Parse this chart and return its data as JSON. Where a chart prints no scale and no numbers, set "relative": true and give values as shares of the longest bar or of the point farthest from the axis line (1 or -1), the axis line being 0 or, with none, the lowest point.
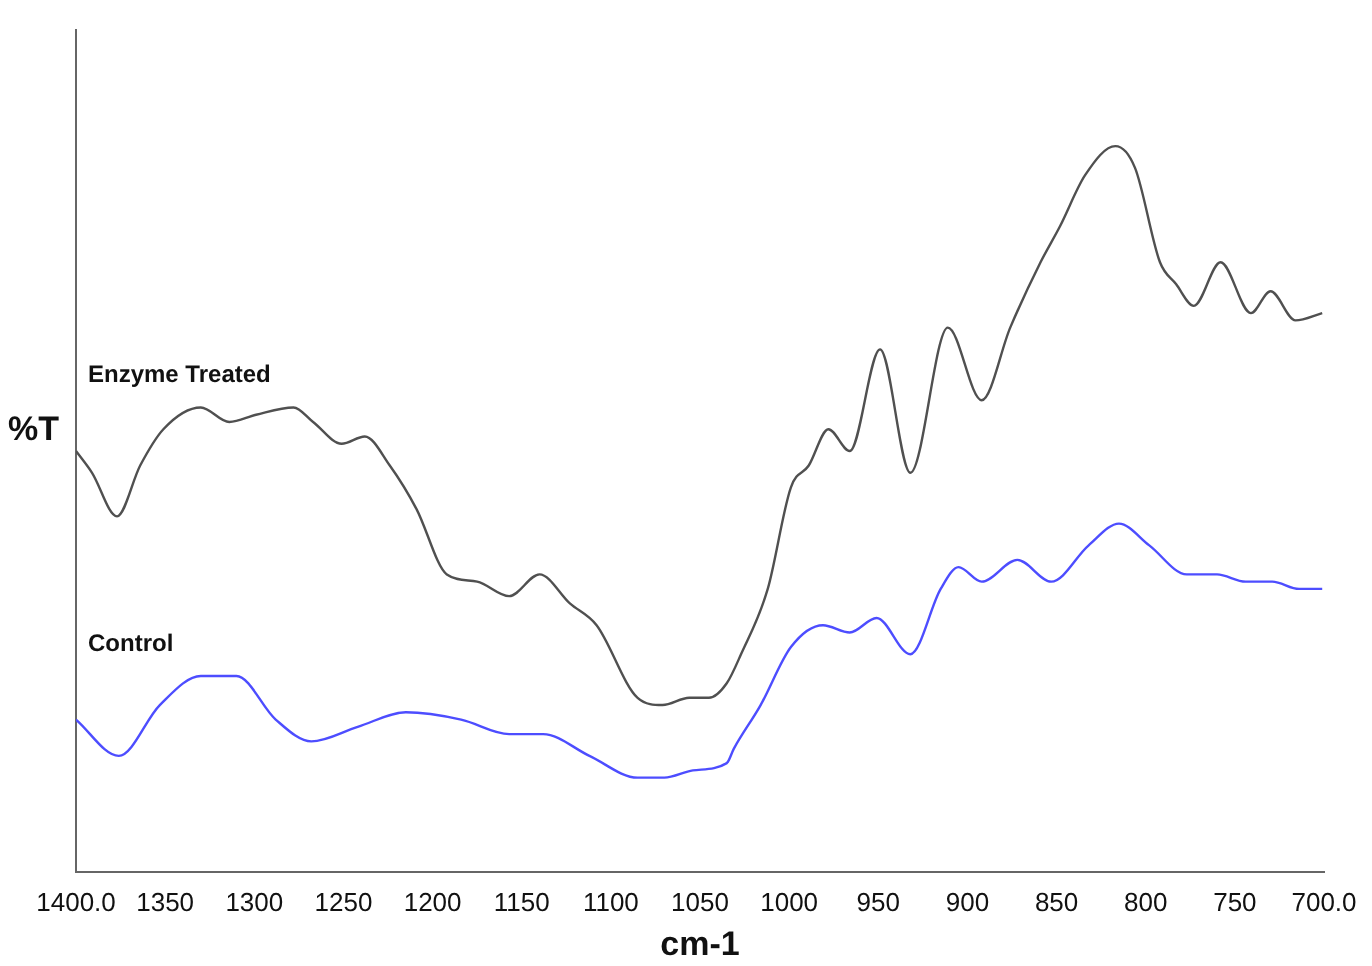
{
  "chart_data": {
    "type": "line",
    "xlabel": "cm-1",
    "ylabel": "%T",
    "relative": true,
    "xlim": [
      1400,
      700
    ],
    "xticks": [
      {
        "value": 1400,
        "label": "1400.0"
      },
      1350,
      1300,
      1250,
      1200,
      1150,
      1100,
      1050,
      1000,
      950,
      900,
      850,
      800,
      750,
      {
        "value": 700,
        "label": "700.0"
      }
    ],
    "grid": false,
    "legend": false,
    "marker": "none",
    "line_style": "solid",
    "series": [
      {
        "name": "Enzyme Treated",
        "color": "#505050",
        "x": [
          1400,
          1391,
          1377,
          1364,
          1351,
          1330,
          1314,
          1299,
          1278,
          1267,
          1251,
          1238,
          1224,
          1209,
          1192,
          1175,
          1157,
          1140,
          1123,
          1108,
          1085,
          1071,
          1056,
          1045,
          1035,
          1027,
          1012,
          999,
          989,
          978,
          966,
          949,
          932,
          911,
          892,
          876,
          859,
          848,
          834,
          817,
          806,
          792,
          783,
          773,
          758,
          741,
          730,
          716,
          701
        ],
        "values": [
          0.58,
          0.55,
          0.49,
          0.56,
          0.61,
          0.64,
          0.62,
          0.63,
          0.64,
          0.62,
          0.59,
          0.6,
          0.56,
          0.5,
          0.41,
          0.4,
          0.38,
          0.41,
          0.37,
          0.34,
          0.24,
          0.23,
          0.24,
          0.24,
          0.26,
          0.3,
          0.39,
          0.53,
          0.56,
          0.61,
          0.58,
          0.72,
          0.55,
          0.75,
          0.65,
          0.75,
          0.84,
          0.89,
          0.96,
          1,
          0.97,
          0.84,
          0.81,
          0.78,
          0.84,
          0.77,
          0.8,
          0.76,
          0.77
        ]
      },
      {
        "name": "Control",
        "color": "#4d4dff",
        "x": [
          1400,
          1376,
          1353,
          1330,
          1310,
          1288,
          1268,
          1242,
          1215,
          1184,
          1157,
          1138,
          1112,
          1085,
          1070,
          1054,
          1035,
          1031,
          1016,
          999,
          981,
          966,
          951,
          932,
          915,
          905,
          892,
          872,
          853,
          832,
          815,
          798,
          777,
          760,
          744,
          729,
          714,
          701
        ],
        "values": [
          0.21,
          0.16,
          0.23,
          0.27,
          0.27,
          0.21,
          0.18,
          0.2,
          0.22,
          0.21,
          0.19,
          0.19,
          0.16,
          0.13,
          0.13,
          0.14,
          0.15,
          0.17,
          0.23,
          0.31,
          0.34,
          0.33,
          0.35,
          0.3,
          0.39,
          0.42,
          0.4,
          0.43,
          0.4,
          0.45,
          0.48,
          0.45,
          0.41,
          0.41,
          0.4,
          0.4,
          0.39,
          0.39
        ]
      }
    ]
  }
}
